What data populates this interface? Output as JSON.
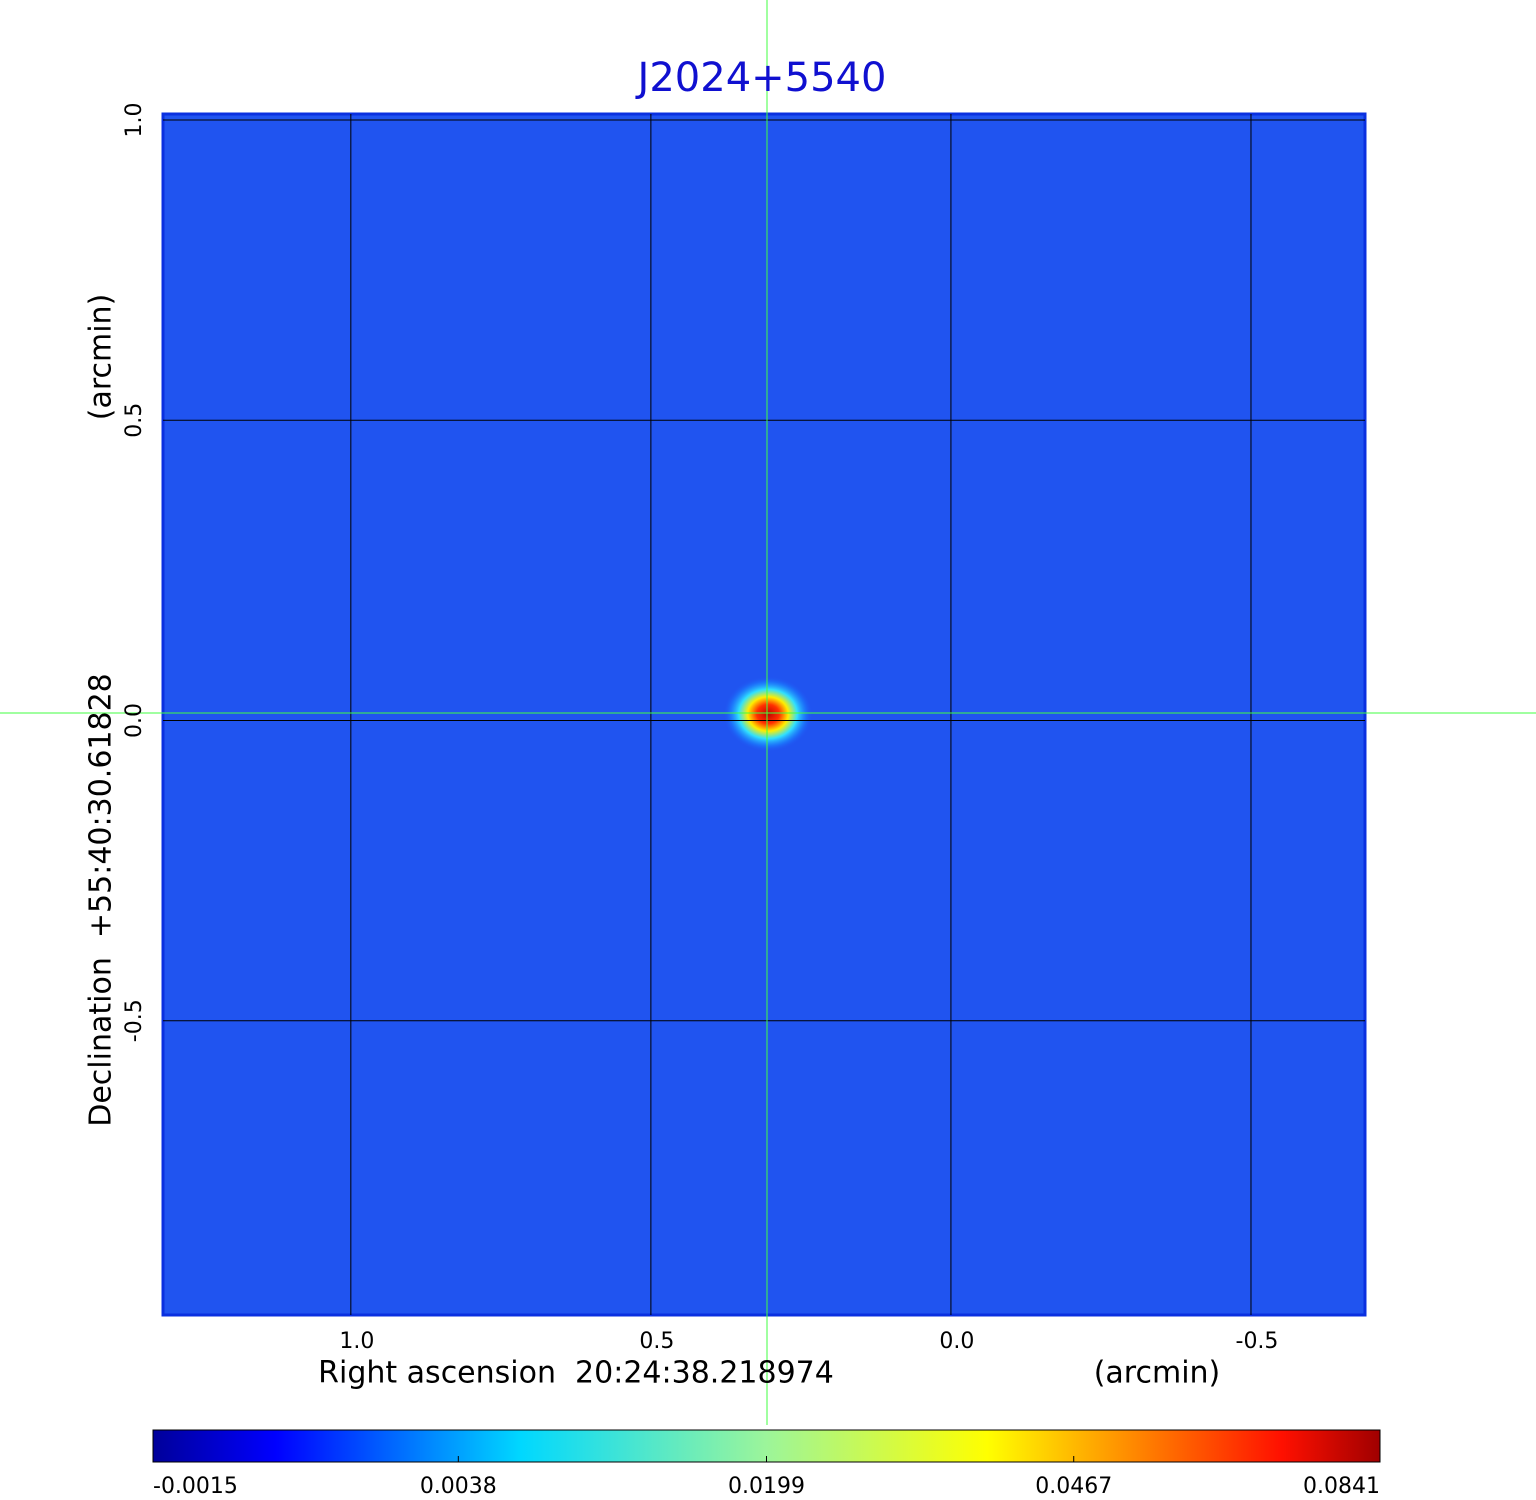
{
  "chart_data": {
    "type": "image",
    "title": "J2024+5540",
    "x_label": "Right ascension  20:24:38.218974",
    "x_unit": "(arcmin)",
    "y_label": "Declination  +55:40:30.61828",
    "y_unit": "(arcmin)",
    "xlim": [
      1.313,
      -0.69
    ],
    "xticks": [
      {
        "value": 1,
        "label": "1.0"
      },
      0.5,
      {
        "value": 0,
        "label": "0.0"
      },
      -0.5
    ],
    "ylim": [
      -0.99,
      1.01
    ],
    "yticks": [
      {
        "value": 1,
        "label": "1.0"
      },
      0.5,
      {
        "value": 0,
        "label": "0.0"
      },
      -0.5
    ],
    "grid": true,
    "colorbar": {
      "lim": [
        -0.0015,
        0.0841
      ],
      "scale": "sqrt",
      "ticks": [
        -0.0015,
        0.0038,
        0.0199,
        0.0467,
        0.0841
      ]
    }
  }
}
